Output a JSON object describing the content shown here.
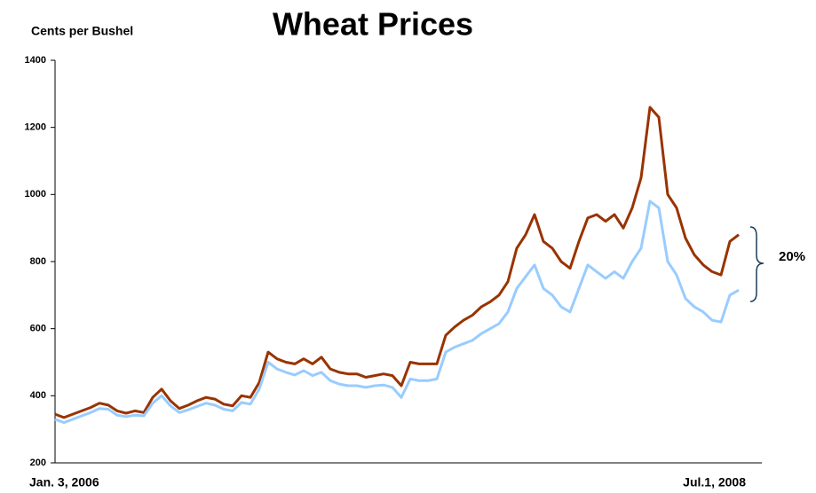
{
  "chart_data": {
    "type": "line",
    "title": "Wheat Prices",
    "y_axis_label": "Cents per Bushel",
    "annotation": "20%",
    "categories": [
      "Jan. 3, 2006",
      null,
      null,
      null,
      null,
      null,
      null,
      null,
      null,
      null,
      null,
      null,
      null,
      null,
      null,
      null,
      null,
      null,
      null,
      null,
      null,
      null,
      null,
      null,
      null,
      null,
      null,
      null,
      null,
      null,
      null,
      null,
      null,
      null,
      null,
      null,
      null,
      null,
      null,
      null,
      null,
      null,
      null,
      null,
      null,
      null,
      null,
      null,
      null,
      null,
      null,
      null,
      null,
      null,
      null,
      null,
      null,
      null,
      null,
      null,
      null,
      null,
      null,
      null,
      null,
      null,
      null,
      null,
      null,
      null,
      null,
      null,
      null,
      null,
      null,
      null,
      null,
      "Jul.1, 2008"
    ],
    "series": [
      {
        "color": "#993300",
        "values": [
          345,
          335,
          345,
          355,
          365,
          378,
          372,
          355,
          348,
          355,
          350,
          395,
          420,
          385,
          362,
          372,
          385,
          395,
          390,
          375,
          370,
          400,
          395,
          440,
          530,
          510,
          500,
          495,
          510,
          495,
          515,
          480,
          470,
          465,
          465,
          455,
          460,
          465,
          460,
          430,
          500,
          495,
          495,
          495,
          580,
          605,
          625,
          640,
          665,
          680,
          700,
          740,
          840,
          880,
          940,
          860,
          840,
          800,
          780,
          860,
          930,
          940,
          920,
          940,
          900,
          960,
          1050,
          1260,
          1230,
          1000,
          960,
          870,
          820,
          790,
          770,
          760,
          860,
          880
        ]
      },
      {
        "color": "#99ccff",
        "values": [
          330,
          320,
          330,
          340,
          350,
          362,
          360,
          342,
          338,
          342,
          340,
          378,
          400,
          370,
          350,
          358,
          368,
          378,
          372,
          360,
          355,
          380,
          375,
          420,
          500,
          480,
          470,
          462,
          475,
          460,
          470,
          445,
          435,
          430,
          430,
          425,
          430,
          432,
          425,
          395,
          450,
          445,
          445,
          450,
          530,
          545,
          555,
          565,
          585,
          600,
          615,
          650,
          720,
          755,
          790,
          720,
          700,
          665,
          650,
          720,
          790,
          770,
          750,
          770,
          750,
          800,
          840,
          980,
          960,
          800,
          760,
          690,
          665,
          650,
          625,
          620,
          700,
          715
        ]
      }
    ],
    "ylim": [
      200,
      1400
    ],
    "yticks": [
      200,
      400,
      600,
      800,
      1000,
      1200,
      1400
    ]
  }
}
